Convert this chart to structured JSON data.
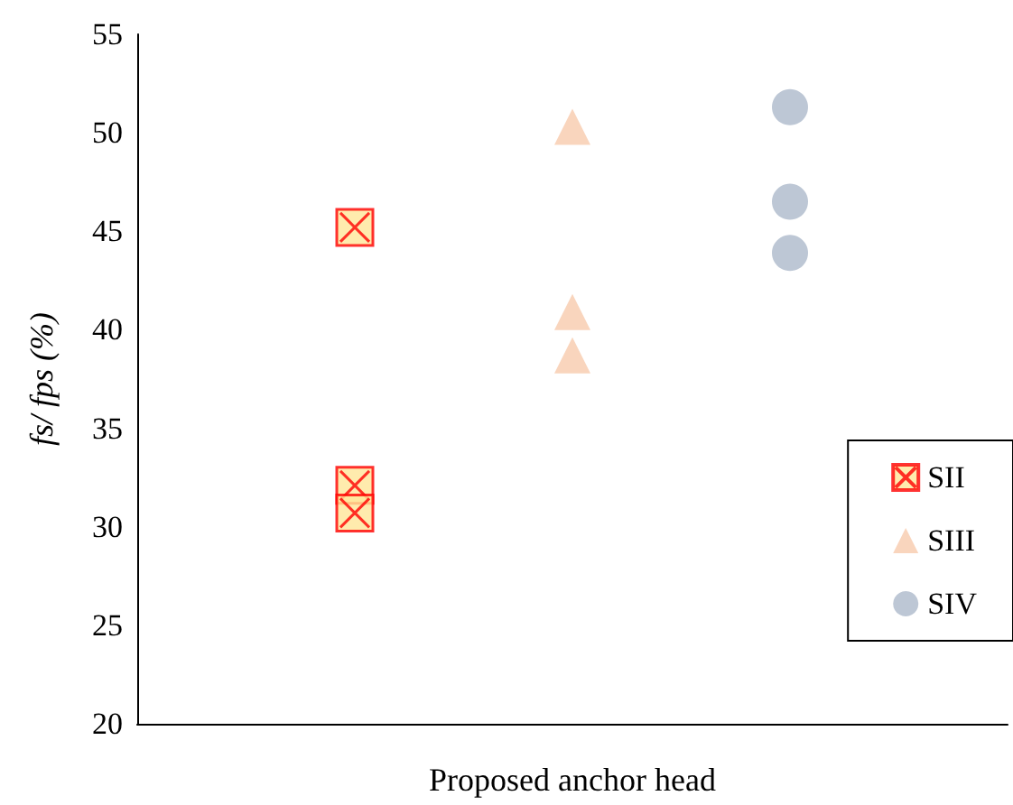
{
  "chart_data": {
    "type": "scatter",
    "xlabel": "Proposed anchor head",
    "ylabel": "fs/ fps (%)",
    "categories": [
      null,
      null,
      null
    ],
    "ylim": [
      20,
      55
    ],
    "yticks": [
      20,
      25,
      30,
      35,
      40,
      45,
      50,
      55
    ],
    "grid": false,
    "legend": "right",
    "series": [
      {
        "name": "SII",
        "marker": "cross",
        "color": "#ff0000",
        "values": [
          45.2,
          null,
          null
        ]
      },
      {
        "marker": "cross",
        "color": "#ff0000",
        "values": [
          32.1,
          null,
          null
        ]
      },
      {
        "marker": "cross",
        "color": "#ff0000",
        "values": [
          30.7,
          null,
          null
        ]
      },
      {
        "name": "SIII",
        "marker": "triangle",
        "color": "#f8cbad",
        "values": [
          null,
          50.3,
          null
        ]
      },
      {
        "marker": "triangle",
        "color": "#f8cbad",
        "values": [
          null,
          40.9,
          null
        ]
      },
      {
        "marker": "triangle",
        "color": "#f8cbad",
        "values": [
          null,
          38.7,
          null
        ]
      },
      {
        "name": "SIV",
        "marker": "circle",
        "color": "#adb9ca",
        "values": [
          null,
          null,
          51.3
        ]
      },
      {
        "marker": "circle",
        "color": "#adb9ca",
        "values": [
          null,
          null,
          46.5
        ]
      },
      {
        "marker": "circle",
        "color": "#adb9ca",
        "values": [
          null,
          null,
          43.9
        ]
      }
    ]
  }
}
